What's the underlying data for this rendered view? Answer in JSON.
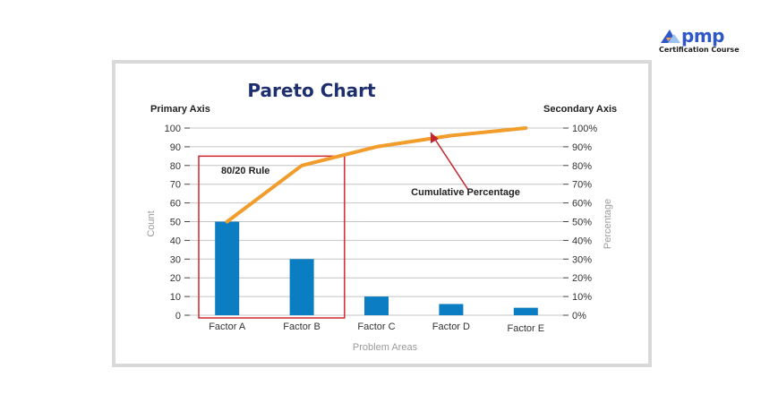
{
  "brand": {
    "name": "pmp",
    "tagline": "Certification Course",
    "colors": {
      "primary": "#2f57c8",
      "accent": "#f2a65a"
    }
  },
  "chart_data": {
    "type": "bar",
    "title": "Pareto Chart",
    "primary_axis_title": "Primary Axis",
    "secondary_axis_title": "Secondary Axis",
    "xlabel": "Problem Areas",
    "ylabel": "Count",
    "y2label": "Percentage",
    "categories": [
      "Factor A",
      "Factor B",
      "Factor C",
      "Factor D",
      "Factor E"
    ],
    "series": [
      {
        "values": [
          50,
          30,
          10,
          6,
          4
        ],
        "color": "#0b7dc2"
      },
      {
        "values": [
          50,
          80,
          90,
          96,
          100
        ],
        "color": "#f29c2b",
        "type": "line",
        "axis": "secondary"
      }
    ],
    "ylim": [
      0,
      100
    ],
    "yticks": [
      "0",
      "10",
      "20",
      "30",
      "40",
      "50",
      "60",
      "70",
      "80",
      "90",
      "100"
    ],
    "y2lim": [
      0,
      100
    ],
    "y2ticks": [
      "0%",
      "10%",
      "20%",
      "30%",
      "40%",
      "50%",
      "60%",
      "70%",
      "80%",
      "90%",
      "100%"
    ],
    "annotations": {
      "rule_label": "80/20 Rule",
      "cumulative_label": "Cumulative Percentage"
    },
    "colors": {
      "highlight_box": "#d0272e",
      "arrow": "#c0262c"
    }
  }
}
